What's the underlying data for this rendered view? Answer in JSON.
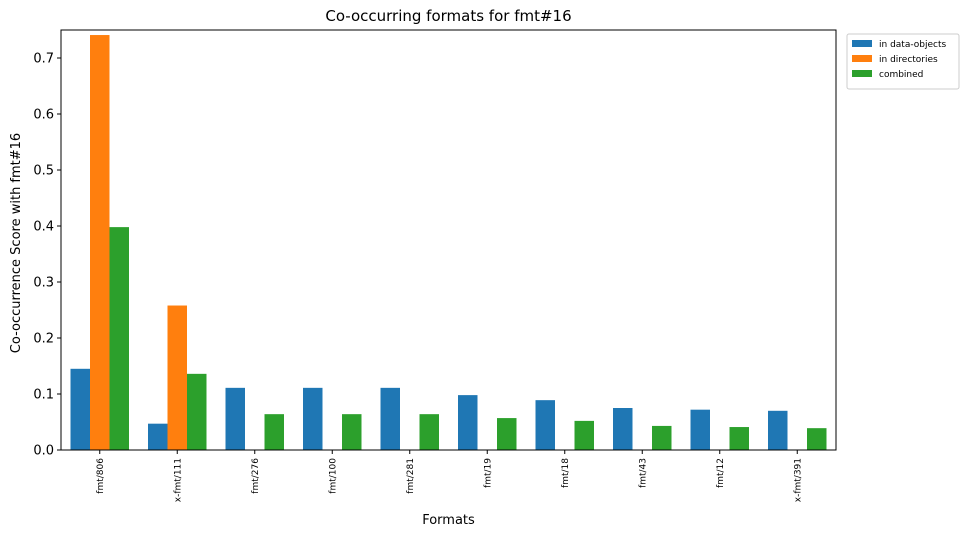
{
  "chart_data": {
    "type": "bar",
    "title": "Co-occurring formats for fmt#16",
    "xlabel": "Formats",
    "ylabel": "Co-occurrence Score with fmt#16",
    "categories": [
      "fmt/806",
      "x-fmt/111",
      "fmt/276",
      "fmt/100",
      "fmt/281",
      "fmt/19",
      "fmt/18",
      "fmt/43",
      "fmt/12",
      "x-fmt/391"
    ],
    "series": [
      {
        "name": "in data-objects",
        "color": "#1f77b4",
        "values": [
          0.145,
          0.047,
          0.111,
          0.111,
          0.111,
          0.098,
          0.089,
          0.075,
          0.072,
          0.07
        ]
      },
      {
        "name": "in directories",
        "color": "#ff7f0e",
        "values": [
          0.741,
          0.258,
          0.0,
          0.0,
          0.0,
          0.0,
          0.0,
          0.0,
          0.0,
          0.0
        ]
      },
      {
        "name": "combined",
        "color": "#2ca02c",
        "values": [
          0.398,
          0.136,
          0.064,
          0.064,
          0.064,
          0.057,
          0.052,
          0.043,
          0.041,
          0.039
        ]
      }
    ],
    "ylim": [
      0,
      0.75
    ],
    "yticks": [
      "0.0",
      "0.1",
      "0.2",
      "0.3",
      "0.4",
      "0.5",
      "0.6",
      "0.7"
    ],
    "grid": false,
    "legend_position": "outside-top-right"
  }
}
